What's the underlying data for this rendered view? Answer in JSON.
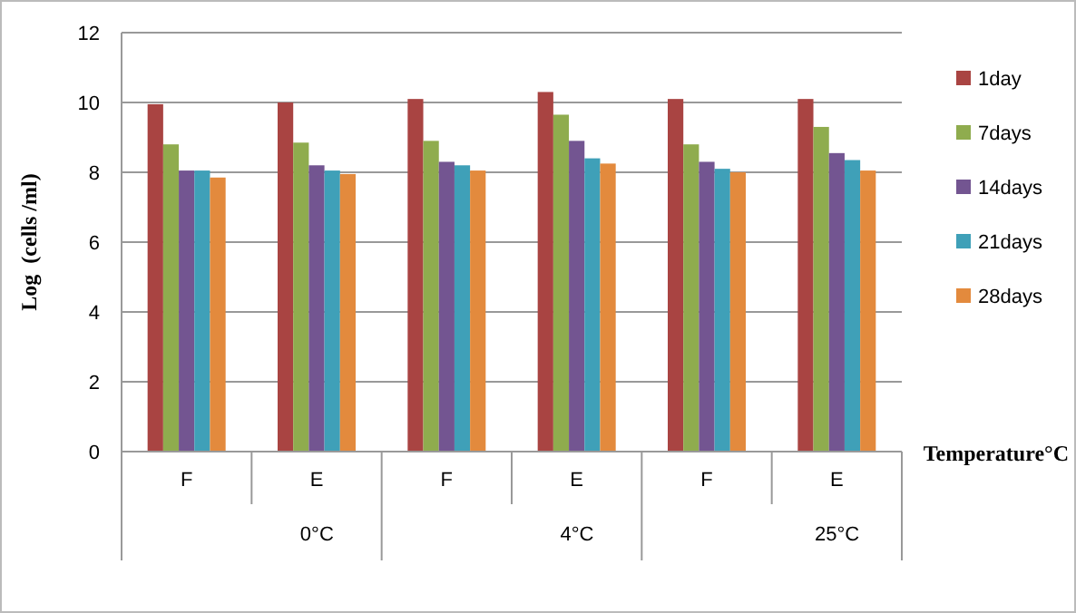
{
  "chart_data": {
    "type": "bar",
    "ylabel": "Log  (cells /ml)",
    "xlabel": "Temperature°C",
    "categories": [
      "F",
      "E",
      "F",
      "E",
      "F",
      "E"
    ],
    "annotations": [
      "0°C",
      "4°C",
      "25°C"
    ],
    "series": [
      {
        "name": "1day",
        "color": "#a94442",
        "values": [
          9.95,
          10.0,
          10.1,
          10.3,
          10.1,
          10.1
        ]
      },
      {
        "name": "7days",
        "color": "#8fac4e",
        "values": [
          8.8,
          8.85,
          8.9,
          9.65,
          8.8,
          9.3
        ]
      },
      {
        "name": "14days",
        "color": "#735591",
        "values": [
          8.05,
          8.2,
          8.3,
          8.9,
          8.3,
          8.55
        ]
      },
      {
        "name": "21days",
        "color": "#3fa0b8",
        "values": [
          8.05,
          8.05,
          8.2,
          8.4,
          8.1,
          8.35
        ]
      },
      {
        "name": "28days",
        "color": "#e38a3d",
        "values": [
          7.85,
          7.95,
          8.05,
          8.25,
          8.0,
          8.05
        ]
      }
    ],
    "ylim": [
      0,
      12
    ],
    "yticks": [
      0,
      2,
      4,
      6,
      8,
      10,
      12
    ],
    "grid": "y",
    "legend": "right"
  }
}
